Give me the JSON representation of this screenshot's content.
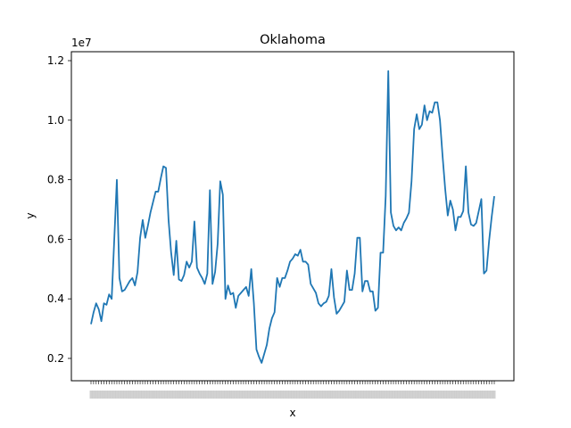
{
  "chart_data": {
    "type": "line",
    "title": "Oklahoma",
    "xlabel": "x",
    "ylabel": "y",
    "offset_text": "1e7",
    "ylim": [
      1250000,
      12300000
    ],
    "yticks": [
      2000000,
      4000000,
      6000000,
      8000000,
      10000000,
      12000000
    ],
    "ytick_labels": [
      "0.2",
      "0.4",
      "0.6",
      "0.8",
      "1.0",
      "1.2"
    ],
    "grid": false,
    "legend": "none",
    "line_color": "#1f77b4",
    "series": [
      {
        "values": [
          3150000,
          3550000,
          3850000,
          3650000,
          3250000,
          3850000,
          3800000,
          4150000,
          4000000,
          6000000,
          8000000,
          4700000,
          4250000,
          4300000,
          4450000,
          4600000,
          4700000,
          4450000,
          4900000,
          6050000,
          6650000,
          6050000,
          6450000,
          6900000,
          7250000,
          7600000,
          7600000,
          8050000,
          8450000,
          8400000,
          6650000,
          5550000,
          4800000,
          5950000,
          4650000,
          4600000,
          4800000,
          5250000,
          5050000,
          5250000,
          6600000,
          5050000,
          4850000,
          4700000,
          4500000,
          4850000,
          7650000,
          4500000,
          4900000,
          5850000,
          7950000,
          7500000,
          4000000,
          4450000,
          4150000,
          4200000,
          3700000,
          4100000,
          4200000,
          4300000,
          4400000,
          4100000,
          5000000,
          3850000,
          2300000,
          2050000,
          1850000,
          2150000,
          2450000,
          3000000,
          3350000,
          3550000,
          4700000,
          4400000,
          4700000,
          4700000,
          4950000,
          5250000,
          5350000,
          5500000,
          5450000,
          5650000,
          5250000,
          5250000,
          5150000,
          4500000,
          4350000,
          4200000,
          3850000,
          3750000,
          3850000,
          3900000,
          4100000,
          5000000,
          4050000,
          3500000,
          3600000,
          3750000,
          3900000,
          4950000,
          4300000,
          4300000,
          4850000,
          6050000,
          6050000,
          4250000,
          4600000,
          4600000,
          4250000,
          4250000,
          3600000,
          3700000,
          5550000,
          5550000,
          7450000,
          11650000,
          6900000,
          6450000,
          6300000,
          6400000,
          6300000,
          6550000,
          6700000,
          6900000,
          7950000,
          9700000,
          10200000,
          9700000,
          9850000,
          10500000,
          10000000,
          10300000,
          10250000,
          10600000,
          10600000,
          10000000,
          8800000,
          7700000,
          6800000,
          7300000,
          7000000,
          6300000,
          6750000,
          6750000,
          6950000,
          8450000,
          6900000,
          6500000,
          6450000,
          6550000,
          6950000,
          7350000,
          4850000,
          4950000,
          5950000,
          6750000,
          7450000
        ]
      }
    ]
  }
}
